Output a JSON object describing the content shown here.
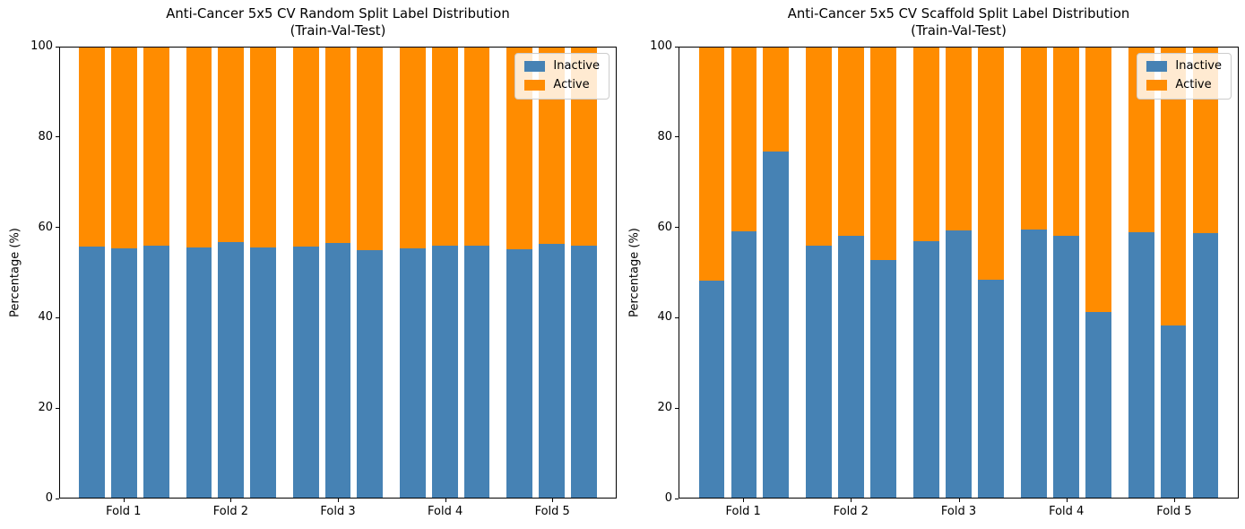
{
  "figure": {
    "ylabel": "Percentage (%)",
    "legend": [
      {
        "label": "Inactive",
        "color": "#4682b4"
      },
      {
        "label": "Active",
        "color": "#ff8c00"
      }
    ]
  },
  "chart_data": [
    {
      "type": "bar",
      "stacked": true,
      "title": "Anti-Cancer 5x5 CV Random Split Label Distribution",
      "subtitle": "(Train-Val-Test)",
      "xlabel": "",
      "ylabel": "Percentage (%)",
      "ylim": [
        0,
        100
      ],
      "yticks": [
        0,
        20,
        40,
        60,
        80,
        100
      ],
      "grid": false,
      "legend_position": "upper right",
      "categories": [
        "Fold 1",
        "Fold 2",
        "Fold 3",
        "Fold 4",
        "Fold 5"
      ],
      "bars_per_category": [
        "Train",
        "Val",
        "Test"
      ],
      "series": [
        {
          "name": "Inactive",
          "color": "#4682b4",
          "values": [
            [
              55.7,
              55.3,
              55.9
            ],
            [
              55.5,
              56.7,
              55.6
            ],
            [
              55.7,
              56.5,
              54.9
            ],
            [
              55.3,
              56.0,
              55.9
            ],
            [
              55.2,
              56.4,
              55.9
            ]
          ]
        },
        {
          "name": "Active",
          "color": "#ff8c00",
          "values": [
            [
              44.3,
              44.7,
              44.1
            ],
            [
              44.5,
              43.3,
              44.4
            ],
            [
              44.3,
              43.5,
              45.1
            ],
            [
              44.7,
              44.0,
              44.1
            ],
            [
              44.8,
              43.6,
              44.1
            ]
          ]
        }
      ]
    },
    {
      "type": "bar",
      "stacked": true,
      "title": "Anti-Cancer 5x5 CV Scaffold Split Label Distribution",
      "subtitle": "(Train-Val-Test)",
      "xlabel": "",
      "ylabel": "Percentage (%)",
      "ylim": [
        0,
        100
      ],
      "yticks": [
        0,
        20,
        40,
        60,
        80,
        100
      ],
      "grid": false,
      "legend_position": "upper right",
      "categories": [
        "Fold 1",
        "Fold 2",
        "Fold 3",
        "Fold 4",
        "Fold 5"
      ],
      "bars_per_category": [
        "Train",
        "Val",
        "Test"
      ],
      "series": [
        {
          "name": "Inactive",
          "color": "#4682b4",
          "values": [
            [
              48.2,
              59.2,
              76.8
            ],
            [
              56.0,
              58.2,
              52.7
            ],
            [
              56.9,
              59.3,
              48.5
            ],
            [
              59.5,
              58.2,
              41.3
            ],
            [
              58.9,
              38.3,
              58.7
            ]
          ]
        },
        {
          "name": "Active",
          "color": "#ff8c00",
          "values": [
            [
              51.8,
              40.8,
              23.2
            ],
            [
              44.0,
              41.8,
              47.3
            ],
            [
              43.1,
              40.7,
              51.5
            ],
            [
              40.5,
              41.8,
              58.7
            ],
            [
              41.1,
              61.7,
              41.3
            ]
          ]
        }
      ]
    }
  ]
}
